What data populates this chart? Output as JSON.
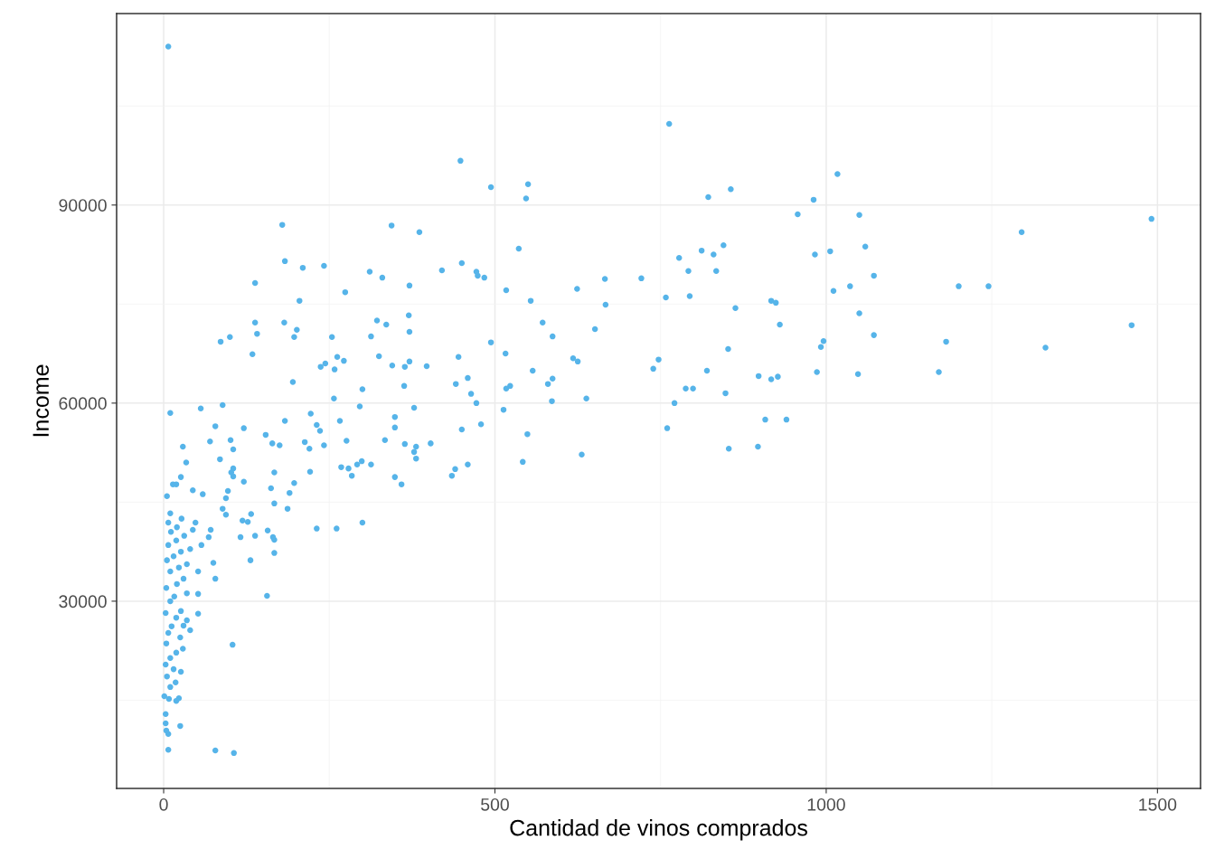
{
  "chart_data": {
    "type": "scatter",
    "xlabel": "Cantidad de vinos comprados",
    "ylabel": "Income",
    "xlim": [
      -71,
      1565
    ],
    "ylim": [
      1640,
      119000
    ],
    "xticks": [
      0,
      500,
      1000,
      1500
    ],
    "yticks": [
      30000,
      60000,
      90000
    ],
    "grid": true,
    "marker": "circle",
    "legend": false,
    "series": [
      {
        "color": "#56b4e9",
        "x": [
          7,
          763,
          448,
          1017,
          550,
          494,
          856,
          822,
          547,
          981,
          957,
          1050,
          1491,
          179,
          344,
          386,
          1295,
          845,
          536,
          1059,
          812,
          1006,
          983,
          830,
          778,
          183,
          450,
          242,
          210,
          420,
          311,
          834,
          472,
          792,
          474,
          484,
          330,
          1072,
          666,
          721,
          138,
          274,
          371,
          1036,
          1200,
          1245,
          517,
          624,
          1011,
          794,
          758,
          205,
          554,
          917,
          924,
          667,
          863,
          1050,
          370,
          322,
          138,
          182,
          572,
          336,
          930,
          1461,
          651,
          201,
          371,
          141,
          313,
          587,
          197,
          1072,
          100,
          254,
          494,
          86,
          1181,
          996,
          992,
          1331,
          852,
          134,
          325,
          262,
          445,
          516,
          618,
          747,
          272,
          371,
          625,
          244,
          397,
          345,
          237,
          364,
          557,
          739,
          258,
          1170,
          1048,
          986,
          820,
          927,
          898,
          917,
          587,
          459,
          195,
          580,
          363,
          441,
          523,
          517,
          788,
          799,
          300,
          464,
          848,
          638,
          257,
          586,
          472,
          771,
          89,
          378,
          296,
          513,
          10,
          56,
          349,
          222,
          183,
          266,
          908,
          940,
          760,
          231,
          121,
          78,
          349,
          479,
          450,
          236,
          549,
          154,
          542,
          101,
          276,
          70,
          164,
          334,
          364,
          403,
          213,
          242,
          175,
          29,
          220,
          105,
          853,
          897,
          381,
          378,
          631,
          381,
          85,
          299,
          34,
          313,
          292,
          268,
          459,
          279,
          105,
          102,
          440,
          221,
          167,
          284,
          105,
          435,
          26,
          349,
          121,
          359,
          197,
          14,
          162,
          44,
          97,
          190,
          59,
          5,
          94,
          167,
          89,
          187,
          94,
          132,
          119,
          127,
          300,
          48,
          231,
          261,
          71,
          157,
          44,
          116,
          138,
          165,
          68,
          167,
          57,
          167,
          131,
          75,
          52,
          78,
          52,
          156,
          52,
          35,
          40,
          104,
          78,
          106,
          3,
          4,
          7,
          7,
          25,
          3,
          1,
          8,
          19,
          23,
          10,
          18,
          5,
          26,
          15,
          3,
          10,
          19,
          29,
          4,
          25,
          7,
          12,
          30,
          19,
          3,
          26,
          10,
          16,
          35,
          4,
          20,
          30,
          10,
          23,
          35,
          5,
          15,
          26,
          40,
          7,
          19,
          31,
          11,
          20,
          7,
          27,
          10,
          19
        ],
        "values": [
          114000,
          102300,
          96700,
          94700,
          93150,
          92700,
          92400,
          91200,
          91000,
          90800,
          88600,
          88500,
          87900,
          87000,
          86900,
          85900,
          85900,
          83900,
          83400,
          83700,
          83100,
          83000,
          82500,
          82500,
          82000,
          81500,
          81200,
          80800,
          80500,
          80100,
          79900,
          80000,
          79900,
          80000,
          79300,
          79000,
          79000,
          79300,
          78800,
          78900,
          78200,
          76800,
          77800,
          77700,
          77700,
          77700,
          77100,
          77300,
          77000,
          76200,
          76000,
          75500,
          75500,
          75500,
          75200,
          74900,
          74400,
          73600,
          73300,
          72500,
          72200,
          72200,
          72200,
          71900,
          71900,
          71800,
          71200,
          71100,
          70800,
          70500,
          70100,
          70100,
          70000,
          70300,
          70000,
          70000,
          69200,
          69300,
          69300,
          69400,
          68500,
          68400,
          68200,
          67400,
          67100,
          67000,
          67000,
          67500,
          66800,
          66600,
          66400,
          66300,
          66300,
          66000,
          65600,
          65700,
          65500,
          65500,
          64900,
          65200,
          65100,
          64700,
          64400,
          64700,
          64900,
          64000,
          64100,
          63600,
          63700,
          63800,
          63200,
          62900,
          62600,
          62900,
          62600,
          62200,
          62200,
          62200,
          62100,
          61400,
          61500,
          60700,
          60700,
          60300,
          60000,
          60000,
          59700,
          59300,
          59500,
          59000,
          58500,
          59200,
          57900,
          58400,
          57300,
          57300,
          57500,
          57500,
          56200,
          56700,
          56200,
          56500,
          56300,
          56800,
          56000,
          55800,
          55300,
          55200,
          51100,
          54400,
          54300,
          54200,
          53900,
          54400,
          53800,
          53900,
          54100,
          53600,
          53600,
          53400,
          53100,
          53000,
          53100,
          53400,
          53400,
          52600,
          52200,
          51600,
          51500,
          51200,
          51000,
          50700,
          50700,
          50300,
          50700,
          50100,
          50100,
          49500,
          50000,
          49600,
          49500,
          49000,
          48900,
          49000,
          48800,
          48800,
          48100,
          47700,
          47900,
          47700,
          47100,
          46800,
          46700,
          46400,
          46200,
          45900,
          45600,
          44800,
          44000,
          44000,
          43100,
          43200,
          42200,
          42000,
          41900,
          41900,
          41000,
          41000,
          40800,
          40700,
          40800,
          39700,
          39900,
          39700,
          39700,
          39300,
          38500,
          37300,
          36200,
          35800,
          34500,
          33400,
          31100,
          30800,
          28100,
          27100,
          25600,
          23400,
          7400,
          7000,
          11500,
          10400,
          9900,
          7500,
          11100,
          12900,
          15600,
          15200,
          14900,
          15300,
          17000,
          17700,
          18600,
          19300,
          19700,
          20400,
          21400,
          22200,
          22800,
          23600,
          24500,
          25200,
          26200,
          26300,
          27500,
          28200,
          28500,
          30000,
          30700,
          31200,
          32000,
          32600,
          33400,
          34500,
          35100,
          35600,
          36200,
          36800,
          37500,
          37900,
          38500,
          39200,
          39900,
          40500,
          41200,
          41900,
          42500,
          43300,
          47700
        ]
      }
    ]
  }
}
